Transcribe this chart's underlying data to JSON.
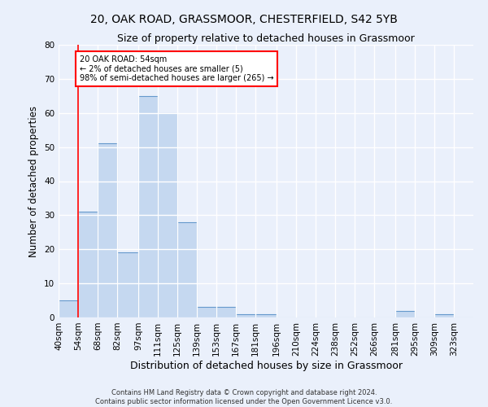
{
  "title1": "20, OAK ROAD, GRASSMOOR, CHESTERFIELD, S42 5YB",
  "title2": "Size of property relative to detached houses in Grassmoor",
  "xlabel": "Distribution of detached houses by size in Grassmoor",
  "ylabel": "Number of detached properties",
  "bar_values": [
    5,
    31,
    51,
    19,
    65,
    60,
    28,
    3,
    3,
    1,
    1,
    0,
    0,
    0,
    0,
    0,
    0,
    2,
    0,
    1,
    0
  ],
  "bin_edges": [
    40,
    54,
    68,
    82,
    97,
    111,
    125,
    139,
    153,
    167,
    181,
    196,
    210,
    224,
    238,
    252,
    266,
    281,
    295,
    309,
    323,
    337
  ],
  "bin_labels": [
    "40sqm",
    "54sqm",
    "68sqm",
    "82sqm",
    "97sqm",
    "111sqm",
    "125sqm",
    "139sqm",
    "153sqm",
    "167sqm",
    "181sqm",
    "196sqm",
    "210sqm",
    "224sqm",
    "238sqm",
    "252sqm",
    "266sqm",
    "281sqm",
    "295sqm",
    "309sqm",
    "323sqm"
  ],
  "bar_color": "#c5d8f0",
  "bar_edge_color": "#6699cc",
  "annotation_text": "20 OAK ROAD: 54sqm\n← 2% of detached houses are smaller (5)\n98% of semi-detached houses are larger (265) →",
  "annotation_box_color": "white",
  "annotation_box_edge_color": "red",
  "vline_x": 54,
  "vline_color": "red",
  "ylim": [
    0,
    80
  ],
  "yticks": [
    0,
    10,
    20,
    30,
    40,
    50,
    60,
    70,
    80
  ],
  "footnote1": "Contains HM Land Registry data © Crown copyright and database right 2024.",
  "footnote2": "Contains public sector information licensed under the Open Government Licence v3.0.",
  "background_color": "#eaf0fb",
  "plot_bg_color": "#eaf0fb",
  "grid_color": "white",
  "title1_fontsize": 10,
  "title2_fontsize": 9,
  "xlabel_fontsize": 9,
  "ylabel_fontsize": 8.5,
  "tick_fontsize": 7.5,
  "footnote_fontsize": 6
}
